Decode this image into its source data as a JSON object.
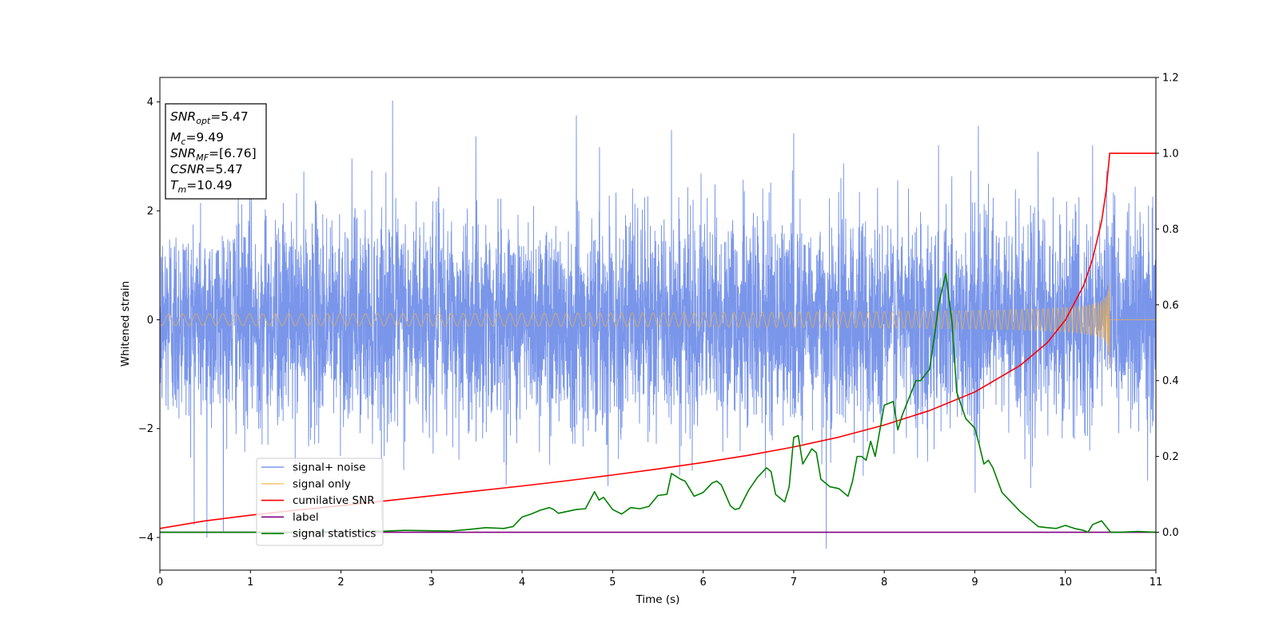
{
  "chart_data": {
    "type": "line",
    "xlabel": "Time (s)",
    "ylabel": "Whitened strain",
    "xlim": [
      0,
      11
    ],
    "ylim": [
      -4.6,
      4.45
    ],
    "y2lim": [
      -0.1,
      1.2
    ],
    "xticks": [
      "0",
      "1",
      "2",
      "3",
      "4",
      "5",
      "6",
      "7",
      "8",
      "9",
      "10",
      "11"
    ],
    "yticks": [
      "−4",
      "−2",
      "0",
      "2",
      "4"
    ],
    "y2ticks": [
      "0.0",
      "0.2",
      "0.4",
      "0.6",
      "0.8",
      "1.0",
      "1.2"
    ],
    "legend_position": "lower-left",
    "annotation": [
      {
        "sym": "SNR",
        "sub": "opt",
        "text": "=5.47"
      },
      {
        "sym": "M",
        "sub": "c",
        "text": "=9.49"
      },
      {
        "sym": "SNR",
        "sub": "MF",
        "text": "=[6.76]"
      },
      {
        "sym": "CSNR",
        "sub": "",
        "text": "=5.47"
      },
      {
        "sym": "T",
        "sub": "m",
        "text": "=10.49"
      }
    ],
    "series": [
      {
        "name": "signal+ noise",
        "color": "#4169e1",
        "axis": "left",
        "style": "noise",
        "sample_rate_hz": 512,
        "noise_std": 0.95,
        "spikes": [
          [
            0.52,
            -4.0
          ],
          [
            2.57,
            4.02
          ],
          [
            4.6,
            3.75
          ],
          [
            5.65,
            3.48
          ],
          [
            7.0,
            3.42
          ],
          [
            7.36,
            -4.2
          ],
          [
            8.6,
            3.2
          ],
          [
            10.3,
            3.2
          ]
        ]
      },
      {
        "name": "signal only",
        "color": "#f5b041",
        "axis": "left",
        "style": "chirp",
        "t_merge": 10.49,
        "peak_amplitude": 0.9
      },
      {
        "name": "cumilative SNR",
        "color": "#ff0000",
        "axis": "right",
        "x": [
          0,
          0.5,
          1,
          1.5,
          2,
          2.5,
          3,
          3.5,
          4,
          4.5,
          5,
          5.5,
          6,
          6.5,
          7,
          7.5,
          8,
          8.5,
          9,
          9.5,
          9.8,
          10,
          10.2,
          10.3,
          10.4,
          10.45,
          10.49,
          10.5,
          11
        ],
        "y": [
          0.01,
          0.03,
          0.045,
          0.058,
          0.07,
          0.083,
          0.096,
          0.109,
          0.122,
          0.136,
          0.151,
          0.167,
          0.184,
          0.203,
          0.225,
          0.251,
          0.283,
          0.321,
          0.37,
          0.44,
          0.5,
          0.56,
          0.65,
          0.72,
          0.82,
          0.9,
          1.0,
          1.0,
          1.0
        ]
      },
      {
        "name": "label",
        "color": "#800080",
        "axis": "right",
        "x": [
          0,
          11
        ],
        "y": [
          0,
          0
        ]
      },
      {
        "name": "signal statistics",
        "color": "#008000",
        "axis": "right",
        "x": [
          0,
          0.5,
          1,
          1.5,
          2,
          2.5,
          2.7,
          3,
          3.2,
          3.4,
          3.6,
          3.8,
          3.9,
          4.0,
          4.1,
          4.2,
          4.3,
          4.35,
          4.4,
          4.5,
          4.6,
          4.7,
          4.8,
          4.85,
          4.9,
          5.0,
          5.1,
          5.2,
          5.3,
          5.4,
          5.5,
          5.6,
          5.65,
          5.75,
          5.8,
          5.9,
          6.0,
          6.1,
          6.15,
          6.2,
          6.3,
          6.35,
          6.4,
          6.5,
          6.6,
          6.7,
          6.75,
          6.8,
          6.9,
          6.95,
          7.0,
          7.05,
          7.1,
          7.2,
          7.25,
          7.3,
          7.4,
          7.5,
          7.6,
          7.65,
          7.7,
          7.75,
          7.8,
          7.85,
          7.9,
          8.0,
          8.05,
          8.1,
          8.15,
          8.2,
          8.3,
          8.35,
          8.4,
          8.5,
          8.55,
          8.6,
          8.68,
          8.75,
          8.8,
          8.9,
          9.0,
          9.05,
          9.1,
          9.15,
          9.2,
          9.3,
          9.4,
          9.5,
          9.6,
          9.7,
          9.8,
          9.9,
          10.0,
          10.1,
          10.2,
          10.25,
          10.3,
          10.35,
          10.4,
          10.5,
          10.6,
          10.8,
          11.0
        ],
        "y": [
          0.0,
          0.0,
          0.0,
          0.0,
          0.002,
          0.003,
          0.005,
          0.004,
          0.003,
          0.007,
          0.012,
          0.01,
          0.015,
          0.04,
          0.048,
          0.058,
          0.065,
          0.06,
          0.05,
          0.055,
          0.06,
          0.062,
          0.107,
          0.085,
          0.092,
          0.06,
          0.048,
          0.065,
          0.062,
          0.068,
          0.097,
          0.1,
          0.155,
          0.14,
          0.135,
          0.095,
          0.105,
          0.13,
          0.135,
          0.125,
          0.07,
          0.06,
          0.063,
          0.11,
          0.145,
          0.17,
          0.16,
          0.1,
          0.08,
          0.12,
          0.25,
          0.255,
          0.18,
          0.22,
          0.21,
          0.14,
          0.12,
          0.115,
          0.095,
          0.135,
          0.2,
          0.2,
          0.19,
          0.24,
          0.2,
          0.335,
          0.34,
          0.345,
          0.27,
          0.31,
          0.37,
          0.4,
          0.4,
          0.43,
          0.51,
          0.6,
          0.683,
          0.55,
          0.37,
          0.3,
          0.275,
          0.23,
          0.18,
          0.19,
          0.17,
          0.105,
          0.08,
          0.055,
          0.035,
          0.015,
          0.012,
          0.01,
          0.018,
          0.01,
          0.005,
          0.0,
          0.02,
          0.025,
          0.03,
          0.0,
          0.0,
          0.002,
          0.0
        ]
      }
    ]
  }
}
